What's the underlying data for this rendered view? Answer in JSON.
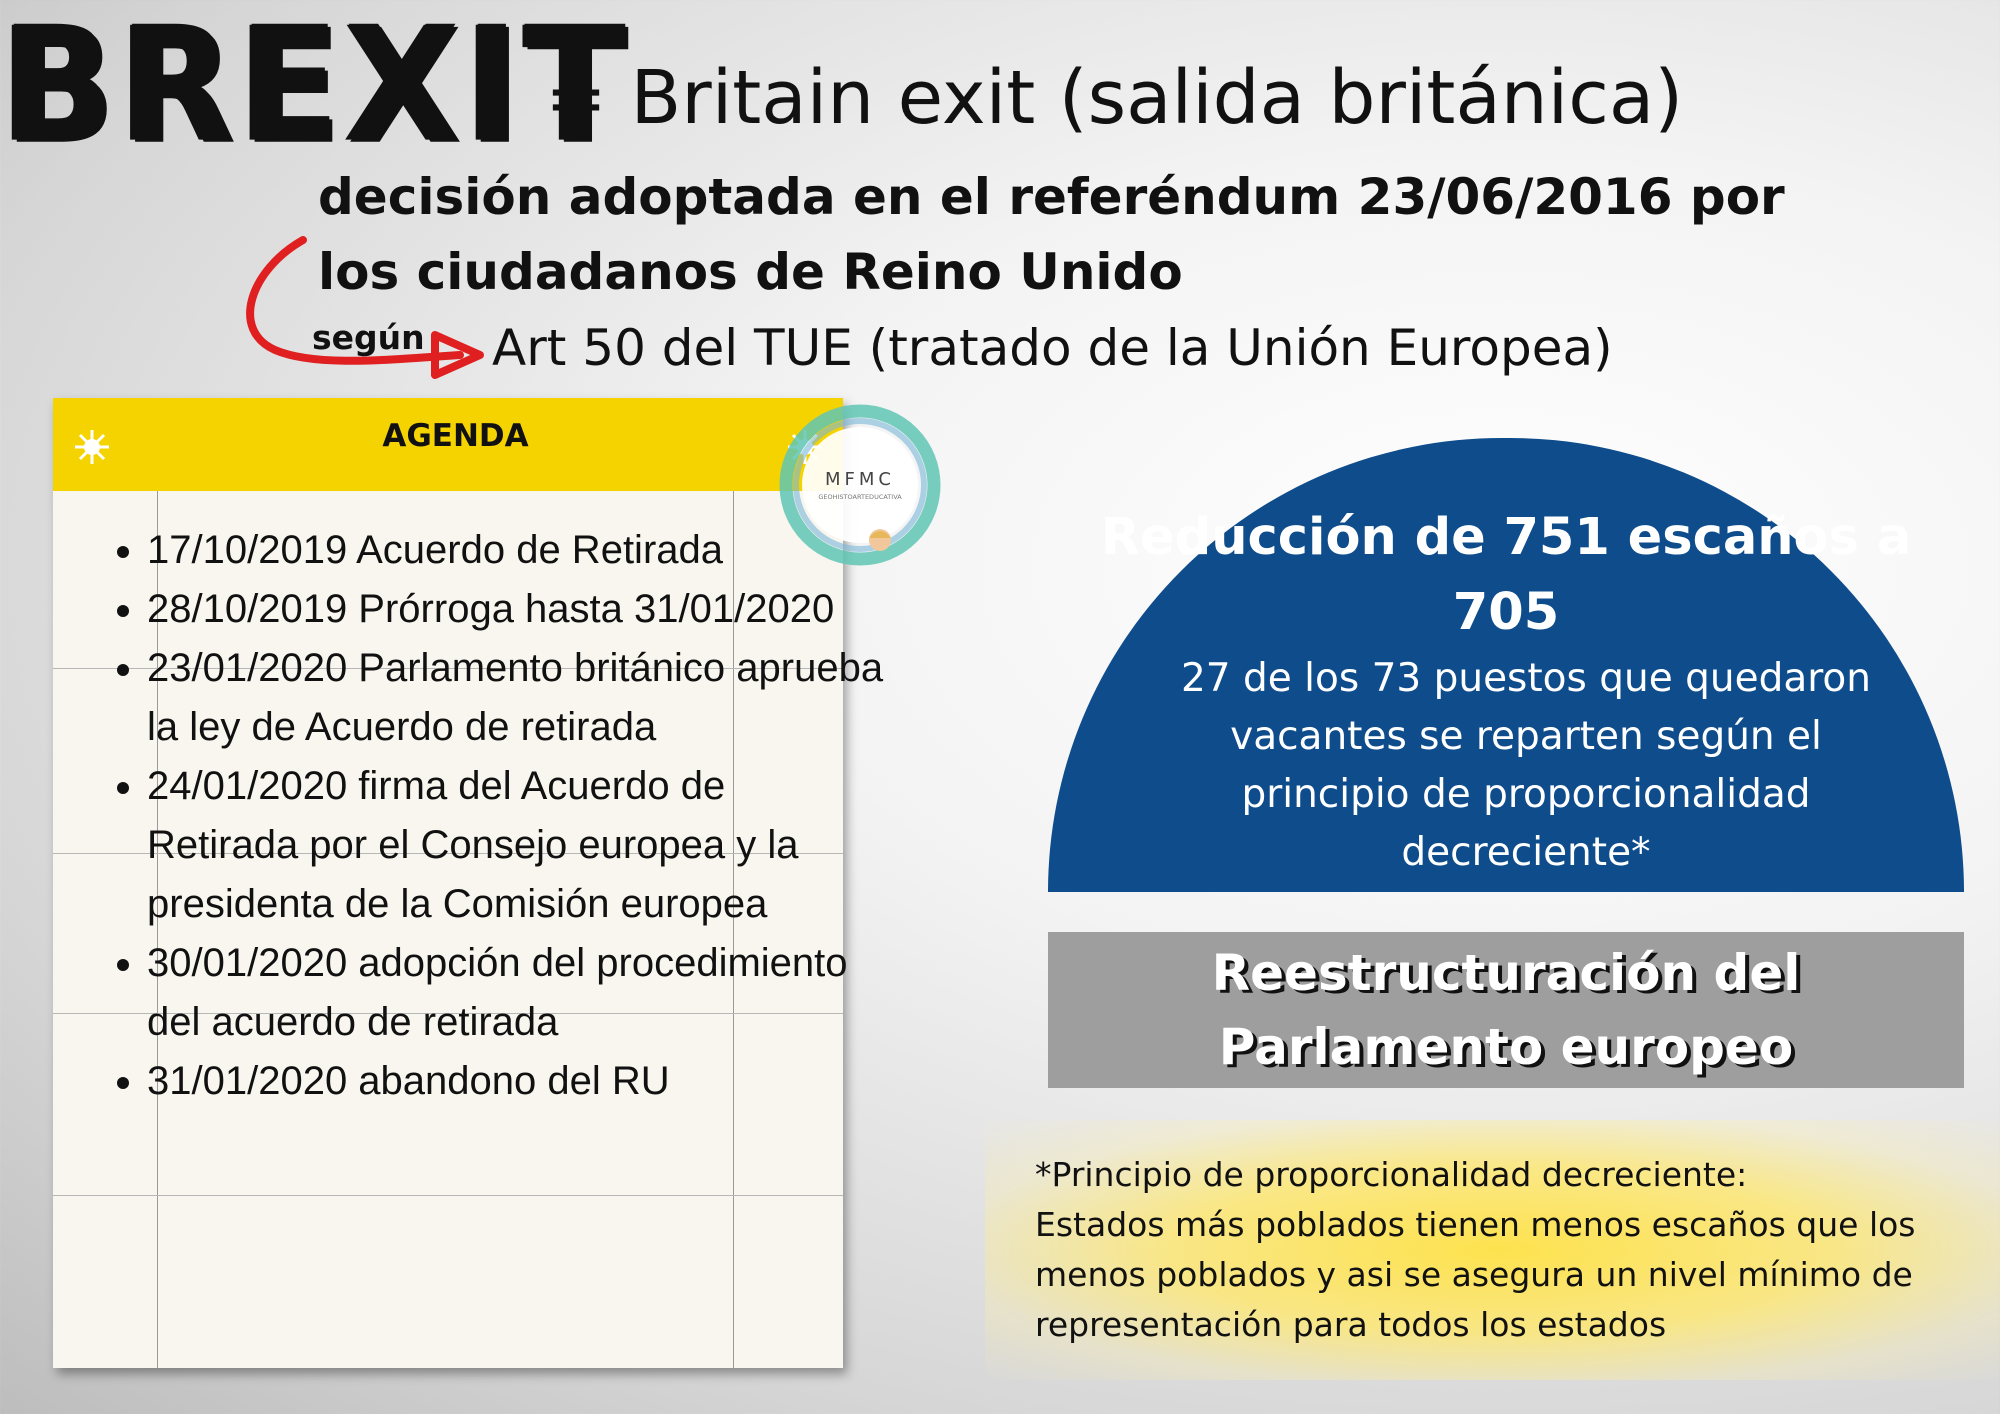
{
  "header": {
    "title": "BREXIT",
    "subtitle": "= Britain exit (salida británica)",
    "referendum_text": "decisión adoptada en el referéndum 23/06/2016 por los ciudadanos de Reino Unido",
    "arrow_label": "según",
    "article_text": "Art 50 del TUE (tratado de la Unión Europea)"
  },
  "agenda": {
    "title": "AGENDA",
    "items": [
      "17/10/2019 Acuerdo de Retirada",
      "28/10/2019 Prórroga hasta 31/01/2020",
      "23/01/2020 Parlamento británico aprueba la ley de Acuerdo de retirada",
      "24/01/2020 firma del Acuerdo de Retirada por el Consejo europea y la presidenta de la Comisión europea",
      "30/01/2020 adopción del procedimiento del acuerdo de retirada",
      "31/01/2020 abandono del RU"
    ]
  },
  "logo": {
    "name": "MFMC",
    "tagline": "GEOHISTOARTEDUCATIVA"
  },
  "parliament": {
    "headline": "Reducción de 751 escaños a 705",
    "detail": "27 de los 73 puestos que quedaron vacantes se reparten según el principio de proporcionalidad decreciente*",
    "restructure": "Reestructuración del Parlamento europeo"
  },
  "footnote": {
    "heading": "*Principio de proporcionalidad decreciente:",
    "body": "Estados más poblados tienen menos escaños que los menos poblados y asi se asegura un nivel mínimo de representación para todos los estados"
  },
  "colors": {
    "agenda_header": "#f5d300",
    "semicircle": "#0e4c8c",
    "restructure_box": "#9e9e9e",
    "arrow": "#e02020"
  }
}
